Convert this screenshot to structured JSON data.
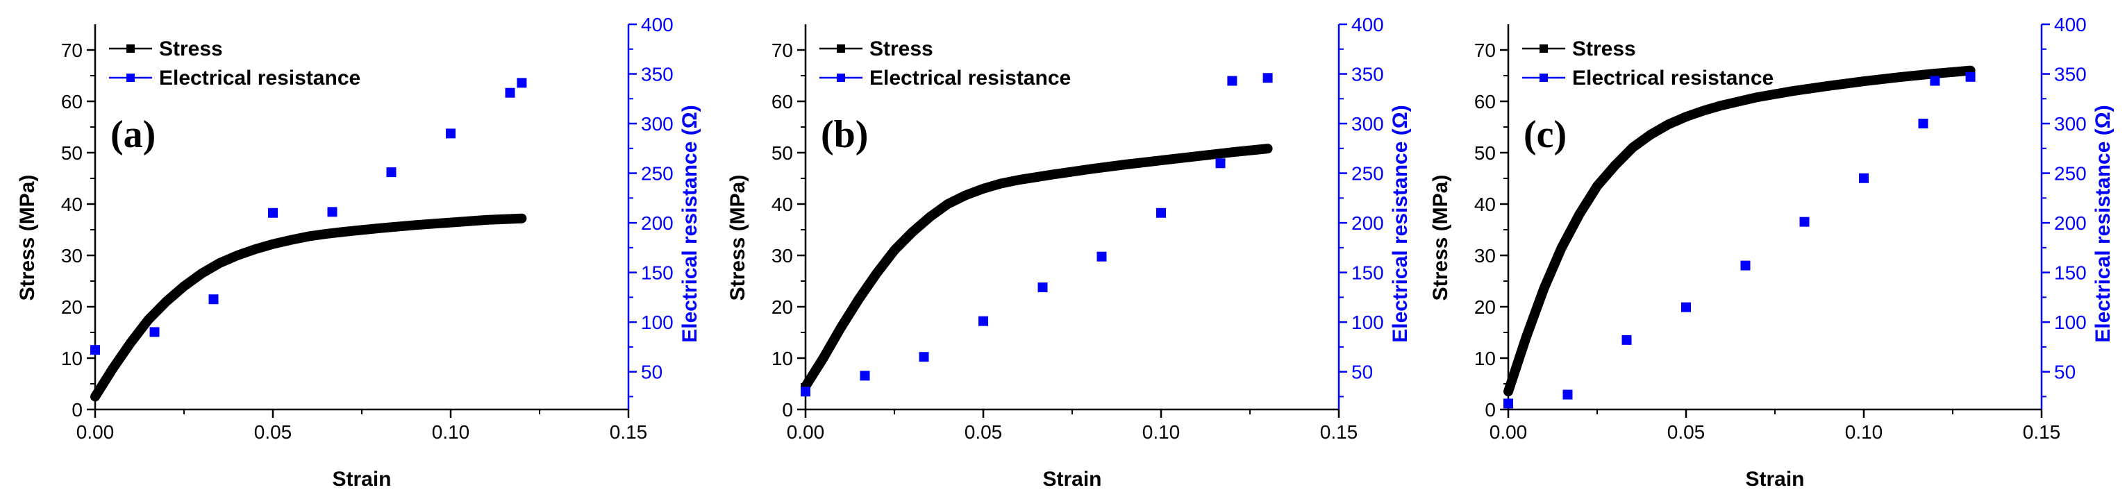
{
  "colors": {
    "stress": "#000000",
    "resistance": "#0000ff",
    "axis": "#000000"
  },
  "chart_data": [
    {
      "type": "line+scatter",
      "panel_label": "(a)",
      "xlabel": "Strain",
      "ylabel": "Stress (MPa)",
      "y2label": "Electrical resistance (Ω)",
      "xlim": [
        0,
        0.15
      ],
      "ylim": [
        0,
        75
      ],
      "y2lim": [
        12,
        400
      ],
      "x_ticks": [
        0,
        0.05,
        0.1,
        0.15
      ],
      "x_tick_labels": [
        "0.00",
        "0.05",
        "0.10",
        "0.15"
      ],
      "y_ticks": [
        0,
        10,
        20,
        30,
        40,
        50,
        60,
        70
      ],
      "y_tick_labels": [
        "0",
        "10",
        "20",
        "30",
        "40",
        "50",
        "60",
        "70"
      ],
      "y2_ticks": [
        50,
        100,
        150,
        200,
        250,
        300,
        350,
        400
      ],
      "y2_tick_labels": [
        "50",
        "100",
        "150",
        "200",
        "250",
        "300",
        "350",
        "400"
      ],
      "legend": {
        "position": "top-left",
        "entries": [
          "Stress",
          "Electrical resistance"
        ]
      },
      "series": [
        {
          "name": "Stress",
          "style": "thick-line",
          "axis": "left",
          "x": [
            0,
            0.005,
            0.01,
            0.015,
            0.02,
            0.025,
            0.03,
            0.035,
            0.04,
            0.045,
            0.05,
            0.055,
            0.06,
            0.065,
            0.07,
            0.08,
            0.09,
            0.1,
            0.11,
            0.12
          ],
          "y": [
            2.5,
            8,
            13,
            17.5,
            21,
            24,
            26.5,
            28.5,
            30,
            31.2,
            32.2,
            33,
            33.7,
            34.2,
            34.6,
            35.3,
            35.9,
            36.4,
            36.9,
            37.2
          ]
        },
        {
          "name": "Electrical resistance",
          "style": "square-markers",
          "axis": "right",
          "x": [
            0,
            0.0167,
            0.0333,
            0.05,
            0.0667,
            0.0833,
            0.1,
            0.1167,
            0.12
          ],
          "y": [
            72,
            90,
            123,
            210,
            211,
            251,
            290,
            331,
            341
          ]
        }
      ]
    },
    {
      "type": "line+scatter",
      "panel_label": "(b)",
      "xlabel": "Strain",
      "ylabel": "Stress (MPa)",
      "y2label": "Electrical resistance (Ω)",
      "xlim": [
        0,
        0.15
      ],
      "ylim": [
        0,
        75
      ],
      "y2lim": [
        12,
        400
      ],
      "x_ticks": [
        0,
        0.05,
        0.1,
        0.15
      ],
      "x_tick_labels": [
        "0.00",
        "0.05",
        "0.10",
        "0.15"
      ],
      "y_ticks": [
        0,
        10,
        20,
        30,
        40,
        50,
        60,
        70
      ],
      "y_tick_labels": [
        "0",
        "10",
        "20",
        "30",
        "40",
        "50",
        "60",
        "70"
      ],
      "y2_ticks": [
        50,
        100,
        150,
        200,
        250,
        300,
        350,
        400
      ],
      "y2_tick_labels": [
        "50",
        "100",
        "150",
        "200",
        "250",
        "300",
        "350",
        "400"
      ],
      "legend": {
        "position": "top-left",
        "entries": [
          "Stress",
          "Electrical resistance"
        ]
      },
      "series": [
        {
          "name": "Stress",
          "style": "thick-line",
          "axis": "left",
          "x": [
            0,
            0.005,
            0.01,
            0.015,
            0.02,
            0.025,
            0.03,
            0.035,
            0.04,
            0.045,
            0.05,
            0.055,
            0.06,
            0.07,
            0.08,
            0.09,
            0.1,
            0.11,
            0.12,
            0.13
          ],
          "y": [
            4.5,
            10,
            16,
            21.5,
            26.5,
            31,
            34.5,
            37.5,
            40,
            41.7,
            43,
            44,
            44.7,
            45.8,
            46.8,
            47.7,
            48.5,
            49.3,
            50.1,
            50.8
          ]
        },
        {
          "name": "Electrical resistance",
          "style": "square-markers",
          "axis": "right",
          "x": [
            0,
            0.0167,
            0.0333,
            0.05,
            0.0667,
            0.0833,
            0.1,
            0.1167,
            0.12,
            0.13
          ],
          "y": [
            30,
            46,
            65,
            101,
            135,
            166,
            210,
            260,
            343,
            346
          ]
        }
      ]
    },
    {
      "type": "line+scatter",
      "panel_label": "(c)",
      "xlabel": "Strain",
      "ylabel": "Stress (MPa)",
      "y2label": "Electrical resistance (Ω)",
      "xlim": [
        0,
        0.15
      ],
      "ylim": [
        0,
        75
      ],
      "y2lim": [
        12,
        400
      ],
      "x_ticks": [
        0,
        0.05,
        0.1,
        0.15
      ],
      "x_tick_labels": [
        "0.00",
        "0.05",
        "0.10",
        "0.15"
      ],
      "y_ticks": [
        0,
        10,
        20,
        30,
        40,
        50,
        60,
        70
      ],
      "y_tick_labels": [
        "0",
        "10",
        "20",
        "30",
        "40",
        "50",
        "60",
        "70"
      ],
      "y2_ticks": [
        50,
        100,
        150,
        200,
        250,
        300,
        350,
        400
      ],
      "y2_tick_labels": [
        "50",
        "100",
        "150",
        "200",
        "250",
        "300",
        "350",
        "400"
      ],
      "legend": {
        "position": "top-left",
        "entries": [
          "Stress",
          "Electrical resistance"
        ]
      },
      "series": [
        {
          "name": "Stress",
          "style": "thick-line",
          "axis": "left",
          "x": [
            0,
            0.005,
            0.01,
            0.015,
            0.02,
            0.025,
            0.03,
            0.035,
            0.04,
            0.045,
            0.05,
            0.055,
            0.06,
            0.07,
            0.08,
            0.09,
            0.1,
            0.11,
            0.12,
            0.13
          ],
          "y": [
            3.5,
            14,
            23.5,
            31.5,
            38,
            43.5,
            47.5,
            51,
            53.5,
            55.5,
            57,
            58.2,
            59.2,
            60.8,
            62,
            63,
            63.9,
            64.7,
            65.4,
            66
          ]
        },
        {
          "name": "Electrical resistance",
          "style": "square-markers",
          "axis": "right",
          "x": [
            0,
            0.0167,
            0.0333,
            0.05,
            0.0667,
            0.0833,
            0.1,
            0.1167,
            0.12,
            0.13
          ],
          "y": [
            18,
            27,
            82,
            115,
            157,
            201,
            245,
            300,
            343,
            347
          ]
        }
      ]
    }
  ]
}
